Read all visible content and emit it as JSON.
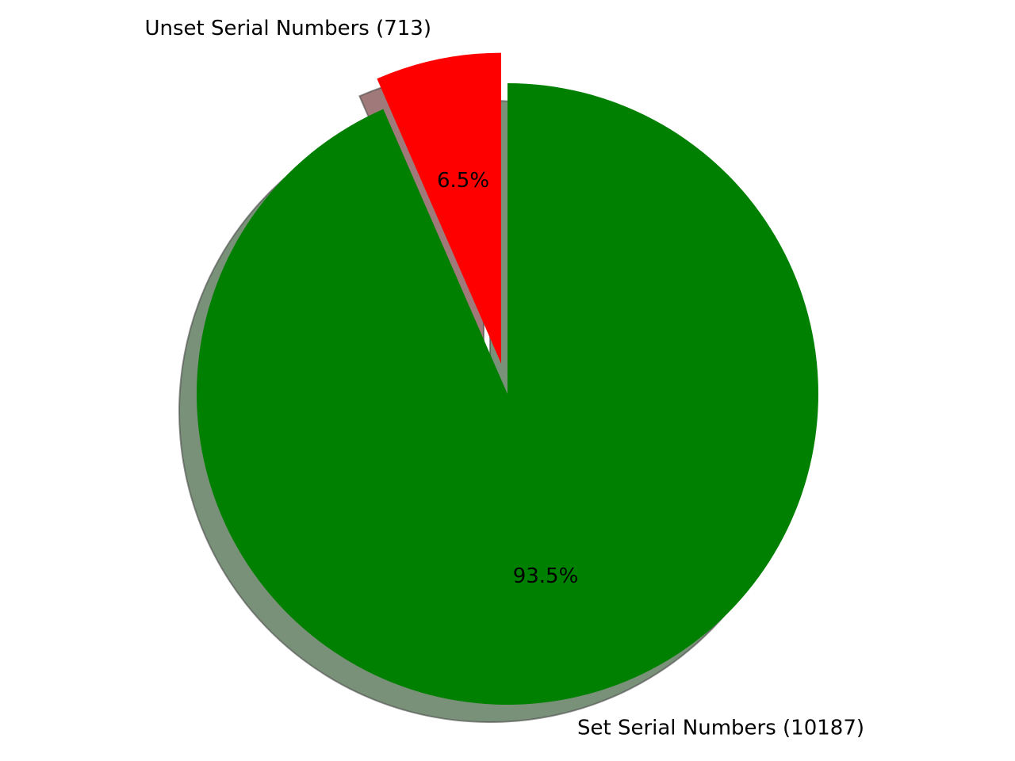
{
  "chart_data": {
    "type": "pie",
    "slices": [
      {
        "label": "Unset Serial Numbers (713)",
        "value": 713,
        "pct_label": "6.5%",
        "color": "#ff0000",
        "explode": true,
        "shadow_color": "#a07a7a"
      },
      {
        "label": "Set Serial Numbers (10187)",
        "value": 10187,
        "pct_label": "93.5%",
        "color": "#008000",
        "explode": false,
        "shadow_color": "#7a9179"
      }
    ],
    "start": "top",
    "direction": "counterclockwise",
    "shadow": true,
    "legend": false
  }
}
